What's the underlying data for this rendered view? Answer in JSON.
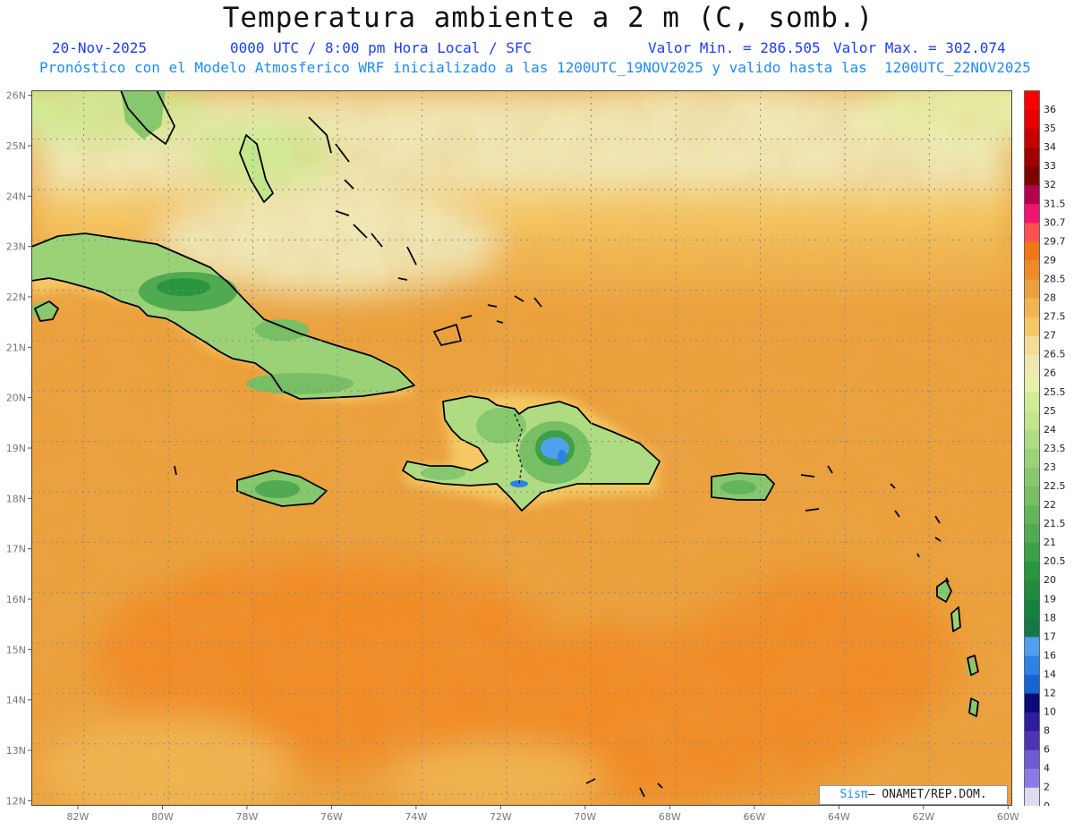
{
  "header": {
    "title": "Temperatura ambiente a 2 m (C, somb.)",
    "date": "20-Nov-2025",
    "time_info": "0000 UTC / 8:00 pm Hora Local / SFC",
    "min_label": "Valor Min. = 286.505",
    "max_label": "Valor Max. = 302.074",
    "model_info": "Pronóstico con el Modelo Atmosferico WRF inicializado a las 1200UTC_19NOV2025 y valido hasta las  1200UTC_22NOV2025"
  },
  "map": {
    "lon_range": [
      -83.1,
      -59.9
    ],
    "lat_range": [
      11.9,
      26.1
    ],
    "lon_labels": [
      "82W",
      "80W",
      "78W",
      "76W",
      "74W",
      "72W",
      "70W",
      "68W",
      "66W",
      "64W",
      "62W",
      "60W"
    ],
    "lat_labels": [
      "26N",
      "25N",
      "24N",
      "23N",
      "22N",
      "21N",
      "20N",
      "19N",
      "18N",
      "17N",
      "16N",
      "15N",
      "14N",
      "13N",
      "12N"
    ],
    "lon_values": [
      -82,
      -80,
      -78,
      -76,
      -74,
      -72,
      -70,
      -68,
      -66,
      -64,
      -62,
      -60
    ],
    "lat_values": [
      26,
      25,
      24,
      23,
      22,
      21,
      20,
      19,
      18,
      17,
      16,
      15,
      14,
      13,
      12
    ]
  },
  "colorbar": {
    "labels": [
      "36",
      "35",
      "34",
      "33",
      "32",
      "31.5",
      "30.7",
      "29.7",
      "29",
      "28.5",
      "28",
      "27.5",
      "27",
      "26.5",
      "26",
      "25.5",
      "25",
      "24",
      "23.5",
      "23",
      "22.5",
      "22",
      "21.5",
      "21",
      "20.5",
      "20",
      "19",
      "18",
      "17",
      "16",
      "14",
      "12",
      "10",
      "8",
      "6",
      "4",
      "2",
      "0"
    ],
    "colors": [
      "#ff0000",
      "#e60000",
      "#c80000",
      "#a00000",
      "#800000",
      "#b4004e",
      "#f0146e",
      "#ff5050",
      "#f07814",
      "#f08c28",
      "#eba03c",
      "#f0b450",
      "#f5c864",
      "#f5dc96",
      "#f0e6b4",
      "#e6f0aa",
      "#d2eb96",
      "#c3e68c",
      "#afdc82",
      "#9bd278",
      "#87c86e",
      "#78be64",
      "#64b45a",
      "#50aa50",
      "#3ca046",
      "#28963c",
      "#1e8c3c",
      "#14823c",
      "#147846",
      "#50a0f0",
      "#2d82e6",
      "#1464d2",
      "#0a0a78",
      "#2d1ea0",
      "#5032b4",
      "#6e5ad2",
      "#8c78e6",
      "#dcdcf0"
    ]
  },
  "credit": {
    "prefix": "Sis",
    "pi": "π",
    "suffix": "– ONAMET/REP.DOM."
  }
}
